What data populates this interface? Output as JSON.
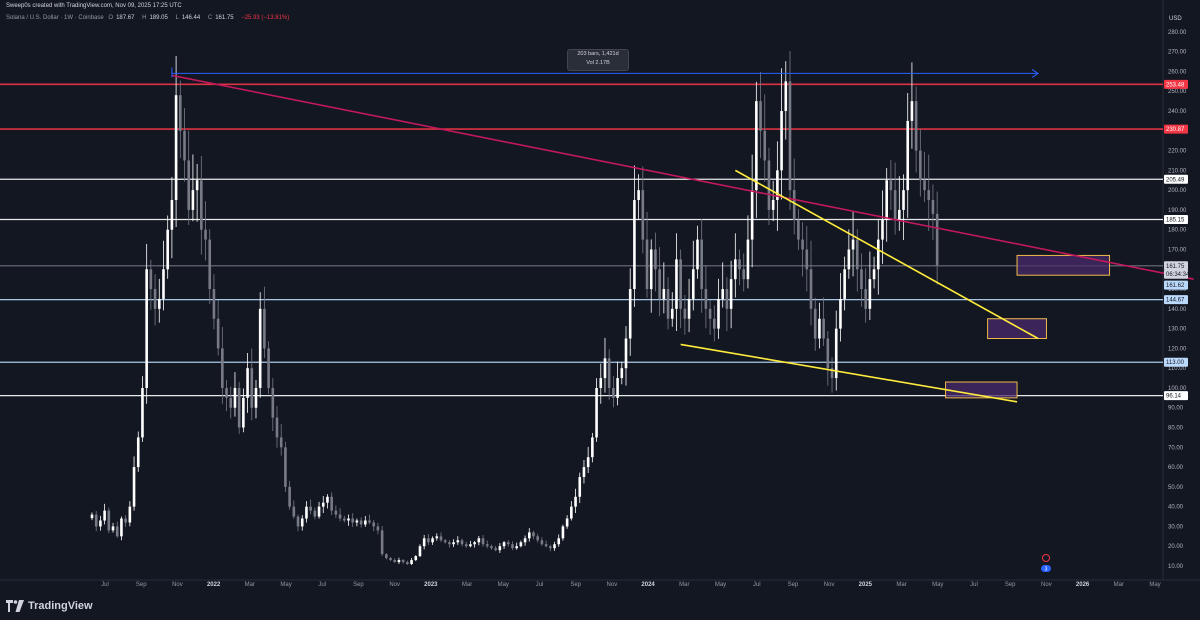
{
  "header": {
    "credit": "Sweep0s created with TradingView.com, Nov 09, 2025 17:25 UTC",
    "symbol_desc": "Solana / U.S. Dollar · 1W · Coinbase",
    "ohlc": {
      "open_label": "O",
      "open": "187.67",
      "high_label": "H",
      "high": "189.05",
      "low_label": "L",
      "low": "146.44",
      "close_label": "C",
      "close": "161.75",
      "change": "−25.93 (−13.81%)"
    }
  },
  "axis": {
    "currency": "USD",
    "price_ticks": [
      280,
      270,
      260,
      250,
      240,
      230,
      220,
      210,
      200,
      190,
      180,
      170,
      160,
      150,
      140,
      130,
      120,
      110,
      100,
      90,
      80,
      70,
      60,
      50,
      40,
      30,
      20,
      10
    ],
    "time_ticks": [
      "Jul",
      "Sep",
      "Nov",
      "2022",
      "Mar",
      "May",
      "Jul",
      "Sep",
      "Nov",
      "2023",
      "Mar",
      "May",
      "Jul",
      "Sep",
      "Nov",
      "2024",
      "Mar",
      "May",
      "Jul",
      "Sep",
      "Nov",
      "2025",
      "Mar",
      "May",
      "Jul",
      "Sep",
      "Nov",
      "2026",
      "Mar",
      "May"
    ]
  },
  "measure": {
    "bars": "203 bars, 1,421d",
    "vol": "Vol 2.17B"
  },
  "levels": [
    {
      "price": 253.48,
      "label": "253.48",
      "color": "#f23645",
      "tag_bg": "#f23645",
      "tag_fg": "#ffffff"
    },
    {
      "price": 230.87,
      "label": "230.87",
      "color": "#f23645",
      "tag_bg": "#f23645",
      "tag_fg": "#ffffff"
    },
    {
      "price": 205.49,
      "label": "205.49",
      "color": "#ffffff",
      "tag_bg": "#ffffff",
      "tag_fg": "#131722"
    },
    {
      "price": 185.15,
      "label": "185.15",
      "color": "#ffffff",
      "tag_bg": "#ffffff",
      "tag_fg": "#131722"
    },
    {
      "price": 161.75,
      "label": "161.75",
      "color": "#787b86",
      "tag_bg": "#d1d4dc",
      "tag_fg": "#131722"
    },
    {
      "price": 144.67,
      "label": "144.67",
      "color": "#bbd9fb",
      "tag_bg": "#bbd9fb",
      "tag_fg": "#131722"
    },
    {
      "price": 113.0,
      "label": "113.00",
      "color": "#bbd9fb",
      "tag_bg": "#bbd9fb",
      "tag_fg": "#131722"
    },
    {
      "price": 96.14,
      "label": "96.14",
      "color": "#ffffff",
      "tag_bg": "#ffffff",
      "tag_fg": "#131722"
    }
  ],
  "extra_tags": [
    {
      "price": 157.5,
      "label": "06:34:34",
      "tag_bg": "#d1d4dc",
      "tag_fg": "#131722"
    },
    {
      "price": 152.0,
      "label": "161.62",
      "tag_bg": "#bbd9fb",
      "tag_fg": "#131722"
    }
  ],
  "colors": {
    "background": "#131722",
    "up_candle": "#ffffff",
    "down_candle": "#787b86",
    "trend_red": "#c2185b",
    "trend_yellow": "#ffeb3b",
    "zone_fill": "#4a2b6b",
    "zone_border": "#f0b94a",
    "measure_arrow": "#2962ff"
  },
  "chart_data": {
    "type": "candlestick",
    "title": "",
    "xlabel": "",
    "ylabel": "",
    "ylim": [
      10,
      285
    ],
    "x_range_weeks": [
      0,
      254
    ],
    "grid": false,
    "last_price": 161.75,
    "weekly_closes": [
      36,
      30,
      33,
      38,
      28,
      30,
      25,
      34,
      32,
      40,
      60,
      75,
      100,
      160,
      150,
      140,
      145,
      160,
      180,
      195,
      248,
      230,
      215,
      190,
      200,
      205,
      180,
      175,
      150,
      135,
      120,
      100,
      95,
      90,
      100,
      80,
      95,
      110,
      90,
      100,
      140,
      120,
      100,
      85,
      75,
      70,
      50,
      40,
      35,
      30,
      34,
      40,
      38,
      35,
      40,
      42,
      45,
      38,
      36,
      34,
      33,
      34,
      32,
      33,
      31,
      33,
      32,
      30,
      28,
      16,
      14,
      13,
      12,
      13,
      12,
      11,
      13,
      15,
      20,
      24,
      22,
      24,
      25,
      23,
      22,
      21,
      22,
      23,
      21,
      20,
      21,
      22,
      24,
      21,
      20,
      19,
      18,
      20,
      22,
      21,
      19,
      20,
      22,
      24,
      27,
      25,
      23,
      21,
      20,
      19,
      21,
      24,
      30,
      34,
      40,
      45,
      55,
      60,
      65,
      75,
      100,
      105,
      115,
      100,
      95,
      105,
      110,
      125,
      150,
      195,
      200,
      175,
      150,
      170,
      160,
      145,
      150,
      135,
      140,
      165,
      140,
      135,
      145,
      160,
      175,
      150,
      140,
      135,
      130,
      145,
      150,
      140,
      155,
      165,
      160,
      155,
      175,
      200,
      245,
      230,
      215,
      190,
      195,
      210,
      240,
      255,
      200,
      185,
      175,
      170,
      160,
      140,
      125,
      135,
      125,
      110,
      105,
      130,
      145,
      160,
      170,
      175,
      160,
      150,
      140,
      155,
      160,
      175,
      185,
      205,
      200,
      185,
      190,
      200,
      235,
      245,
      220,
      205,
      200,
      195,
      188,
      162
    ],
    "trendlines": [
      {
        "from": [
          19,
          258
        ],
        "to": [
          262,
          155
        ],
        "color": "red"
      },
      {
        "from": [
          153,
          210
        ],
        "to": [
          225,
          125
        ],
        "color": "yellow"
      },
      {
        "from": [
          140,
          122
        ],
        "to": [
          220,
          93
        ],
        "color": "yellow"
      }
    ],
    "zones": [
      {
        "x": [
          220,
          242
        ],
        "y": [
          157,
          167
        ]
      },
      {
        "x": [
          213,
          227
        ],
        "y": [
          125,
          135
        ]
      },
      {
        "x": [
          203,
          220
        ],
        "y": [
          95,
          103
        ]
      }
    ],
    "measure_arrow": {
      "from": [
        19,
        259
      ],
      "to": [
        225,
        259
      ]
    }
  },
  "footer": {
    "brand": "TradingView"
  },
  "event_icons": [
    {
      "label": "3",
      "type": "earnings"
    }
  ]
}
